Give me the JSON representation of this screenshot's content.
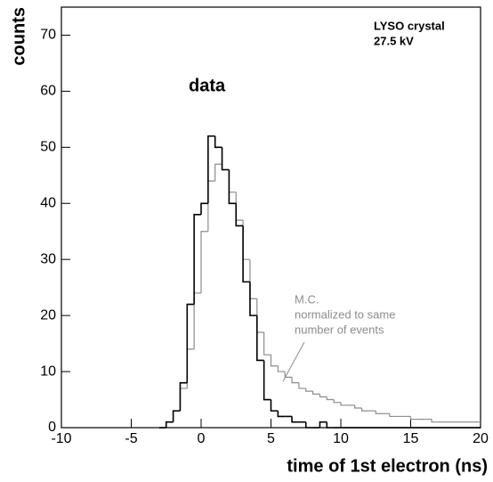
{
  "chart_data": {
    "type": "histogram",
    "xlabel": "time of 1st electron (ns)",
    "ylabel": "counts",
    "xlim": [
      -10,
      20
    ],
    "ylim": [
      0,
      75
    ],
    "xticks": [
      -10,
      -5,
      0,
      5,
      10,
      15,
      20
    ],
    "yticks": [
      0,
      10,
      20,
      30,
      40,
      50,
      60,
      70
    ],
    "bins": [
      -3,
      -2.5,
      -2,
      -1.5,
      -1,
      -0.5,
      0,
      0.5,
      1,
      1.5,
      2,
      2.5,
      3,
      3.5,
      4,
      4.5,
      5,
      5.5,
      6,
      6.5,
      7,
      7.5,
      8,
      8.5,
      9,
      9.5,
      10,
      10.5,
      11,
      11.5,
      12,
      12.5,
      13,
      13.5,
      14,
      14.5,
      15,
      15.5,
      16,
      16.5,
      17,
      17.5,
      18,
      18.5,
      19,
      19.5,
      20
    ],
    "series": [
      {
        "name": "M.C.",
        "color": "#8c8c8c",
        "values": [
          0,
          1,
          3,
          7,
          14,
          24,
          35,
          44,
          47,
          46,
          42,
          37,
          30,
          23,
          17,
          13,
          11,
          10,
          9,
          8,
          7,
          6.5,
          6,
          5.5,
          5,
          4.5,
          4,
          4,
          3.5,
          3,
          3,
          2.5,
          2.5,
          2,
          2,
          2,
          1.5,
          1.5,
          1.5,
          1,
          1,
          1,
          1,
          1,
          1,
          1
        ]
      },
      {
        "name": "data",
        "color": "#000000",
        "values": [
          0,
          1,
          3,
          8,
          22,
          38,
          40,
          52,
          50,
          46,
          40,
          36,
          26,
          20,
          12,
          5,
          3,
          2,
          2,
          1,
          1,
          0,
          0,
          1,
          0,
          0,
          0,
          0,
          0,
          0,
          0,
          0,
          0,
          0,
          0,
          0,
          0,
          0,
          0,
          0,
          0,
          0,
          0,
          0,
          0,
          0
        ]
      }
    ],
    "annotations": [
      "normalized to same",
      "number of events",
      "LYSO crystal",
      "27.5 kV"
    ]
  }
}
